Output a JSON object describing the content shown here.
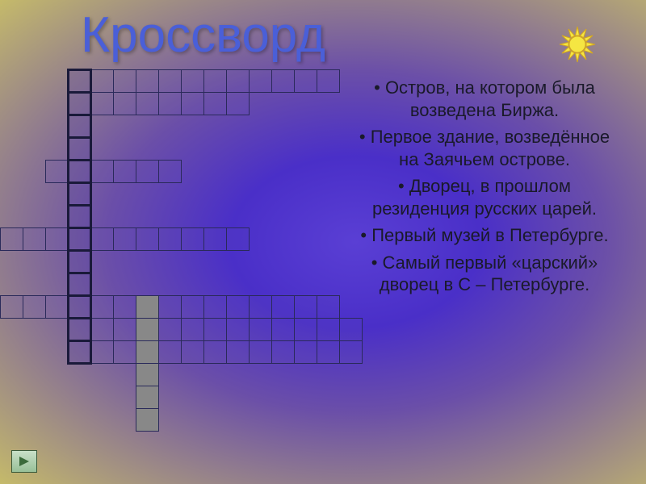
{
  "title": "Кроссворд",
  "clues": [
    "Остров, на котором была возведена Биржа.",
    "Первое здание, возведённое на Заячьем острове.",
    "Дворец, в прошлом резиденция русских царей.",
    "Первый музей в Петербурге.",
    "Самый первый «царский» дворец в С – Петербурге."
  ],
  "sun": {
    "fill": "#f5e642",
    "stroke": "#d4a820"
  },
  "nav": {
    "arrow_color": "#3a6a3a"
  },
  "crossword": {
    "cell_size": 28,
    "rows": [
      {
        "start": 3,
        "len": 12,
        "thick_col": 3
      },
      {
        "start": 3,
        "len": 8,
        "thick_col": 3
      },
      {
        "start": 3,
        "len": 1,
        "thick_col": 3
      },
      {
        "start": 3,
        "len": 1,
        "thick_col": 3
      },
      {
        "start": 2,
        "len": 6,
        "thick_col": 3
      },
      {
        "start": 3,
        "len": 1,
        "thick_col": 3
      },
      {
        "start": 3,
        "len": 1,
        "thick_col": 3
      },
      {
        "start": 0,
        "len": 11,
        "thick_col": 3
      },
      {
        "start": 3,
        "len": 1,
        "thick_col": 3
      },
      {
        "start": 3,
        "len": 1,
        "thick_col": 3
      },
      {
        "start": 0,
        "len": 15,
        "thick_col": 3,
        "fill_col": 6
      },
      {
        "start": 3,
        "len": 1,
        "thick_col": 3,
        "fill_col": 6,
        "extra_len": 13
      },
      {
        "start": 3,
        "len": 13,
        "thick_col": 3,
        "fill_col": 6
      },
      {
        "fill_only_col": 6
      },
      {
        "fill_only_col": 6
      },
      {
        "fill_only_col": 6
      }
    ]
  }
}
